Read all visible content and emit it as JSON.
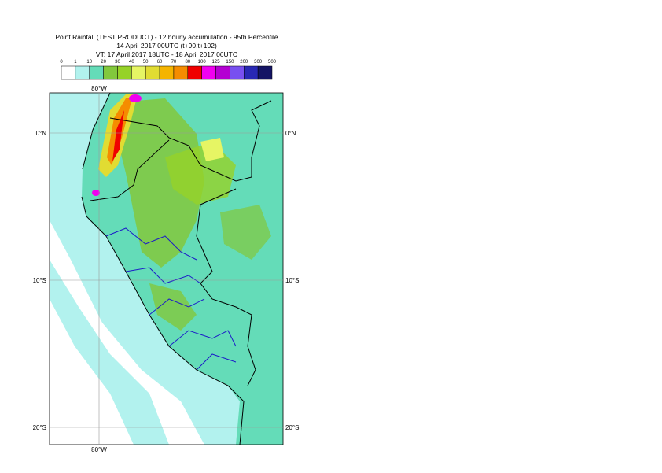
{
  "header": {
    "lines": [
      "Point Rainfall (TEST PRODUCT) - 12 hourly accumulation - 95th Percentile",
      "14 April 2017 00UTC (t+90,t+102)",
      "VT: 17 April 2017 18UTC - 18 April 2017 06UTC"
    ]
  },
  "legend": {
    "labels": [
      "0",
      "1",
      "10",
      "20",
      "30",
      "40",
      "50",
      "60",
      "70",
      "80",
      "100",
      "125",
      "150",
      "200",
      "300",
      "500"
    ],
    "colors": [
      "#ffffff",
      "#b2f2ee",
      "#64dcb8",
      "#82c83c",
      "#96d228",
      "#e6f564",
      "#e1dc32",
      "#f5b400",
      "#f58c00",
      "#f00000",
      "#f000f0",
      "#b400d2",
      "#7850f0",
      "#2828b4",
      "#141464"
    ]
  },
  "map": {
    "lon_labels": [
      "80°W"
    ],
    "lat_labels": [
      "0°N",
      "10°S",
      "20°S"
    ]
  }
}
